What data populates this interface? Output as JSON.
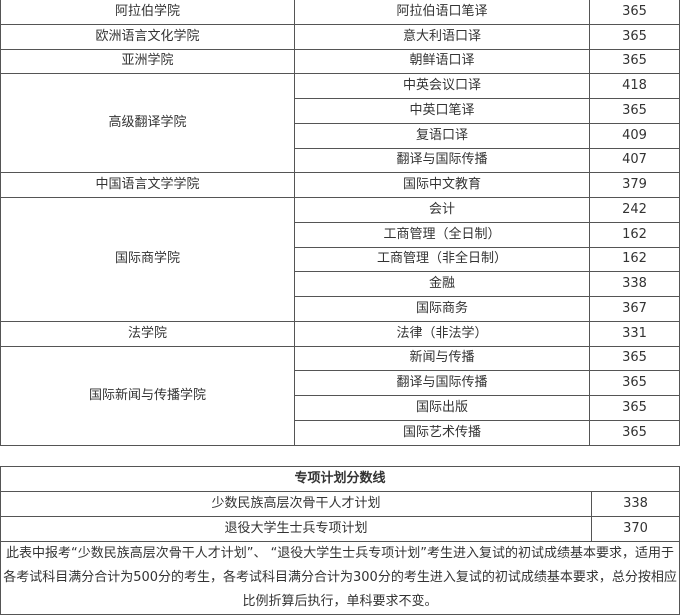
{
  "scores": [
    {
      "college": "阿拉伯学院",
      "majors": [
        {
          "name": "阿拉伯语口笔译",
          "score": "365"
        }
      ]
    },
    {
      "college": "欧洲语言文化学院",
      "majors": [
        {
          "name": "意大利语口译",
          "score": "365"
        }
      ]
    },
    {
      "college": "亚洲学院",
      "majors": [
        {
          "name": "朝鲜语口译",
          "score": "365"
        }
      ]
    },
    {
      "college": "高级翻译学院",
      "majors": [
        {
          "name": "中英会议口译",
          "score": "418"
        },
        {
          "name": "中英口笔译",
          "score": "365"
        },
        {
          "name": "复语口译",
          "score": "409"
        },
        {
          "name": "翻译与国际传播",
          "score": "407"
        }
      ]
    },
    {
      "college": "中国语言文学学院",
      "majors": [
        {
          "name": "国际中文教育",
          "score": "379"
        }
      ]
    },
    {
      "college": "国际商学院",
      "majors": [
        {
          "name": "会计",
          "score": "242"
        },
        {
          "name": "工商管理（全日制）",
          "score": "162"
        },
        {
          "name": "工商管理（非全日制）",
          "score": "162"
        },
        {
          "name": "金融",
          "score": "338"
        },
        {
          "name": "国际商务",
          "score": "367"
        }
      ]
    },
    {
      "college": "法学院",
      "majors": [
        {
          "name": "法律（非法学）",
          "score": "331"
        }
      ]
    },
    {
      "college": "国际新闻与传播学院",
      "majors": [
        {
          "name": "新闻与传播",
          "score": "365"
        },
        {
          "name": "翻译与国际传播",
          "score": "365"
        },
        {
          "name": "国际出版",
          "score": "365"
        },
        {
          "name": "国际艺术传播",
          "score": "365"
        }
      ]
    }
  ],
  "special": {
    "title": "专项计划分数线",
    "rows": [
      {
        "name": "少数民族高层次骨干人才计划",
        "score": "338"
      },
      {
        "name": "退役大学生士兵专项计划",
        "score": "370"
      }
    ],
    "note": "此表中报考“少数民族高层次骨干人才计划”、 “退役大学生士兵专项计划”考生进入复试的初试成绩基本要求，适用于各考试科目满分合计为500分的考生，各考试科目满分合计为300分的考生进入复试的初试成绩基本要求，总分按相应比例折算后执行，单科要求不变。"
  }
}
